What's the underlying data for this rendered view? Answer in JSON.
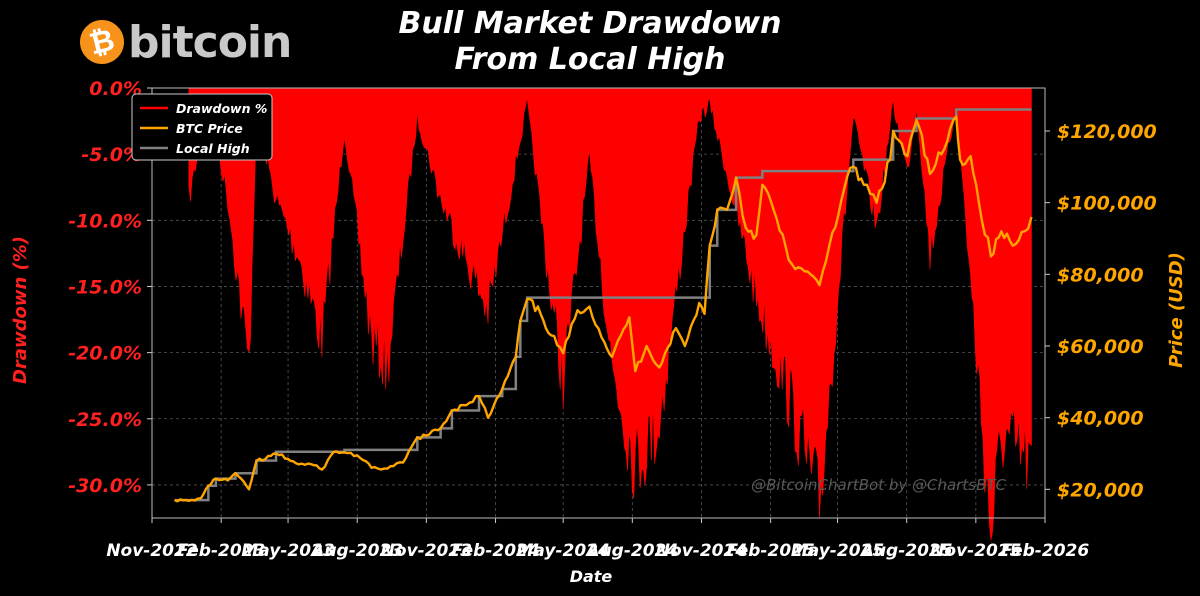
{
  "logo": {
    "coin_symbol": "₿",
    "text": "bitcoin"
  },
  "chart_data": {
    "type": "area",
    "title": "Bull Market Drawdown\nFrom Local High",
    "xlabel": "Date",
    "ylabel_left": "Drawdown (%)",
    "ylabel_right": "Price (USD)",
    "watermark": "@BitcoinChartBot by @ChartsBTC",
    "legend": {
      "placement": "top-left",
      "entries": [
        {
          "label": "Drawdown %",
          "color": "#ff0000"
        },
        {
          "label": "BTC Price",
          "color": "#ffa500"
        },
        {
          "label": "Local High",
          "color": "#808080"
        }
      ]
    },
    "x_ticks": [
      "Nov-2022",
      "Feb-2023",
      "May-2023",
      "Aug-2023",
      "Nov-2023",
      "Feb-2024",
      "May-2024",
      "Aug-2024",
      "Nov-2024",
      "Feb-2025",
      "May-2025",
      "Aug-2025",
      "Nov-2025",
      "Feb-2026"
    ],
    "y_left_ticks": [
      0,
      -5,
      -10,
      -15,
      -20,
      -25,
      -30
    ],
    "y_left_tick_labels": [
      "0.0%",
      "-5.0%",
      "-10.0%",
      "-15.0%",
      "-20.0%",
      "-25.0%",
      "-30.0%"
    ],
    "y_left_range": [
      -32.5,
      0
    ],
    "y_right_ticks": [
      20000,
      40000,
      60000,
      80000,
      100000,
      120000
    ],
    "y_right_tick_labels": [
      "$20,000",
      "$40,000",
      "$60,000",
      "$80,000",
      "$100,000",
      "$120,000"
    ],
    "y_right_range": [
      12000,
      132000
    ],
    "x_range": [
      "2022-11-01",
      "2026-02-01"
    ],
    "colors": {
      "drawdown": "#ff0000",
      "price": "#ffa500",
      "local_high": "#808080",
      "left_axis": "#ff2020",
      "right_axis": "#ffa500"
    },
    "series": [
      {
        "name": "BTC Price",
        "x": [
          "2022-12-01",
          "2022-12-20",
          "2023-01-05",
          "2023-01-15",
          "2023-01-25",
          "2023-02-10",
          "2023-02-20",
          "2023-03-10",
          "2023-03-20",
          "2023-04-01",
          "2023-04-15",
          "2023-05-01",
          "2023-05-15",
          "2023-06-01",
          "2023-06-15",
          "2023-07-01",
          "2023-07-15",
          "2023-08-01",
          "2023-08-20",
          "2023-09-10",
          "2023-10-01",
          "2023-10-20",
          "2023-11-01",
          "2023-11-20",
          "2023-12-05",
          "2023-12-20",
          "2024-01-10",
          "2024-01-22",
          "2024-02-10",
          "2024-02-28",
          "2024-03-05",
          "2024-03-14",
          "2024-04-01",
          "2024-04-15",
          "2024-05-01",
          "2024-05-20",
          "2024-06-05",
          "2024-06-25",
          "2024-07-05",
          "2024-07-28",
          "2024-08-05",
          "2024-08-20",
          "2024-09-06",
          "2024-09-28",
          "2024-10-10",
          "2024-10-29",
          "2024-11-05",
          "2024-11-12",
          "2024-11-22",
          "2024-12-05",
          "2024-12-17",
          "2024-12-30",
          "2025-01-13",
          "2025-01-21",
          "2025-02-05",
          "2025-02-25",
          "2025-03-10",
          "2025-04-07",
          "2025-04-20",
          "2025-05-10",
          "2025-05-22",
          "2025-06-05",
          "2025-06-22",
          "2025-07-10",
          "2025-07-14",
          "2025-08-02",
          "2025-08-14",
          "2025-09-01",
          "2025-09-20",
          "2025-10-06",
          "2025-10-11",
          "2025-10-25",
          "2025-11-05",
          "2025-11-21",
          "2025-12-05",
          "2025-12-20",
          "2026-01-05",
          "2026-01-14"
        ],
        "values": [
          17000,
          16800,
          17500,
          21000,
          23000,
          22500,
          24500,
          20000,
          28000,
          28500,
          30000,
          28500,
          27000,
          27000,
          25500,
          30500,
          30300,
          29500,
          26000,
          25800,
          27500,
          34500,
          35000,
          37000,
          42000,
          43500,
          46000,
          40000,
          48000,
          57000,
          67000,
          73000,
          69000,
          63000,
          58000,
          70000,
          71000,
          61000,
          57000,
          68000,
          53000,
          60000,
          54000,
          65000,
          60000,
          72000,
          69000,
          88000,
          98000,
          98000,
          107000,
          93000,
          91000,
          105000,
          98000,
          84000,
          82000,
          77000,
          88000,
          104000,
          110000,
          105000,
          100000,
          112000,
          120000,
          113000,
          123000,
          108000,
          115000,
          124000,
          112000,
          113000,
          100000,
          85000,
          92000,
          88000,
          92000,
          96000
        ]
      },
      {
        "name": "Local High",
        "x": [
          "2022-12-01",
          "2023-01-15",
          "2023-01-25",
          "2023-02-20",
          "2023-03-20",
          "2023-04-15",
          "2023-07-15",
          "2023-10-20",
          "2023-11-20",
          "2023-12-05",
          "2024-01-10",
          "2024-02-10",
          "2024-02-28",
          "2024-03-05",
          "2024-03-14",
          "2024-10-29",
          "2024-11-12",
          "2024-11-22",
          "2024-12-17",
          "2025-01-21",
          "2025-05-22",
          "2025-07-10",
          "2025-07-14",
          "2025-08-14",
          "2025-10-06",
          "2026-01-14"
        ],
        "values": [
          17000,
          21000,
          23000,
          24500,
          28000,
          30500,
          31000,
          34500,
          37000,
          42000,
          46000,
          48000,
          57000,
          67000,
          73500,
          73500,
          88000,
          98000,
          107000,
          108800,
          112000,
          112000,
          120000,
          123500,
          126000,
          126000
        ]
      },
      {
        "name": "Drawdown %",
        "x": [
          "2022-12-20",
          "2023-01-15",
          "2023-02-10",
          "2023-03-10",
          "2023-03-20",
          "2023-04-15",
          "2023-05-15",
          "2023-06-15",
          "2023-07-15",
          "2023-08-20",
          "2023-09-10",
          "2023-10-20",
          "2023-11-20",
          "2024-01-22",
          "2024-03-14",
          "2024-04-15",
          "2024-05-01",
          "2024-06-05",
          "2024-07-05",
          "2024-08-05",
          "2024-09-06",
          "2024-10-29",
          "2024-11-12",
          "2025-01-13",
          "2025-02-25",
          "2025-04-07",
          "2025-05-22",
          "2025-06-22",
          "2025-07-14",
          "2025-08-02",
          "2025-08-14",
          "2025-09-01",
          "2025-10-06",
          "2025-11-21",
          "2025-12-05",
          "2026-01-14"
        ],
        "values": [
          -8,
          -1,
          -8,
          -20,
          -2,
          -8,
          -12,
          -18,
          -3,
          -18,
          -20,
          -2,
          -8,
          -16,
          -1,
          -15,
          -21,
          -5,
          -20,
          -27,
          -24,
          -2,
          -1,
          -15,
          -22,
          -30,
          -2,
          -10,
          -1,
          -6,
          -1,
          -12,
          -1,
          -32,
          -25,
          -27
        ]
      }
    ]
  }
}
